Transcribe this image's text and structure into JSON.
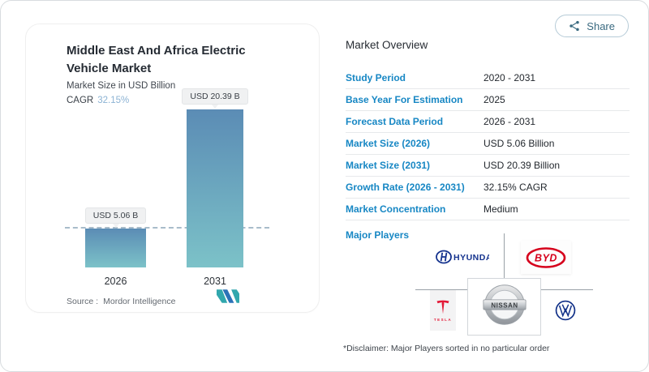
{
  "share": {
    "label": "Share"
  },
  "chart_card": {
    "title": "Middle East And Africa Electric Vehicle Market",
    "subtitle": "Market Size in USD Billion",
    "cagr_label": "CAGR",
    "cagr_value": "32.15%",
    "source_label": "Source :",
    "source_value": "Mordor Intelligence"
  },
  "chart_data": {
    "type": "bar",
    "categories": [
      "2026",
      "2031"
    ],
    "values": [
      5.06,
      20.39
    ],
    "value_labels": [
      "USD 5.06 B",
      "USD 20.39 B"
    ],
    "title": "Middle East And Africa Electric Vehicle Market",
    "ylabel": "Market Size in USD Billion",
    "ylim": [
      0,
      20.39
    ],
    "grid": false,
    "reference_line_at": 5.06,
    "bar_gradient_top": "#5b8cb5",
    "bar_gradient_bottom": "#7cc2c8"
  },
  "overview": {
    "heading": "Market Overview",
    "rows": [
      {
        "label": "Study Period",
        "value": "2020 - 2031"
      },
      {
        "label": "Base Year For Estimation",
        "value": "2025"
      },
      {
        "label": "Forecast Data Period",
        "value": "2026 - 2031"
      },
      {
        "label": "Market Size (2026)",
        "value": "USD 5.06 Billion"
      },
      {
        "label": "Market Size (2031)",
        "value": "USD 20.39 Billion"
      },
      {
        "label": "Growth Rate (2026 - 2031)",
        "value": "32.15% CAGR"
      },
      {
        "label": "Market Concentration",
        "value": "Medium"
      }
    ],
    "major_players_label": "Major Players",
    "players": [
      {
        "name": "Hyundai",
        "wordmark": "HYUNDAI"
      },
      {
        "name": "BYD",
        "wordmark": "BYD"
      },
      {
        "name": "Tesla",
        "wordmark": "TESLA"
      },
      {
        "name": "Nissan",
        "wordmark": "NISSAN"
      },
      {
        "name": "Volkswagen",
        "wordmark": ""
      }
    ],
    "disclaimer": "*Disclaimer: Major Players sorted in no particular order"
  },
  "colors": {
    "table_label_blue": "#1787c4",
    "cagr_value_blue": "#8cb3d4",
    "share_teal": "#3a6a80",
    "hyundai_blue": "#15338e",
    "byd_red": "#d6001c",
    "tesla_red": "#e31937",
    "vw_blue": "#0f2f87",
    "mordor_teal": "#31a7ad",
    "mordor_blue": "#2b72b8"
  }
}
